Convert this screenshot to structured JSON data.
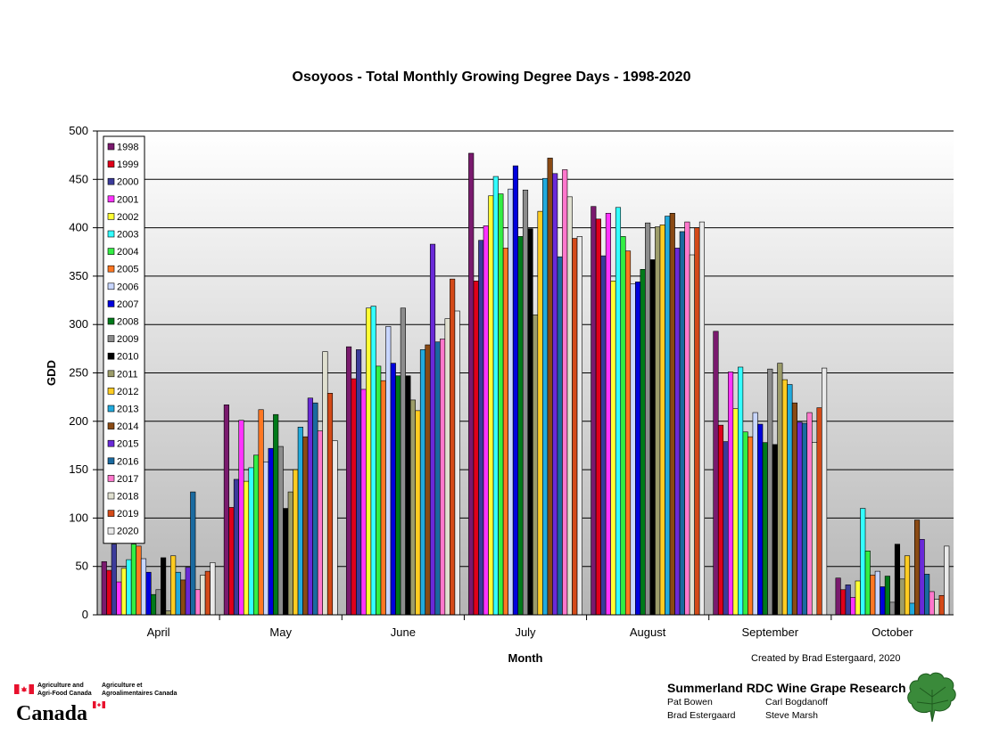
{
  "chart_data": {
    "type": "bar",
    "title": "Osoyoos - Total Monthly Growing Degree Days - 1998-2020",
    "xlabel": "Month",
    "ylabel": "GDD",
    "ylim": [
      0,
      500
    ],
    "yticks": [
      "0",
      "50",
      "100",
      "150",
      "200",
      "250",
      "300",
      "350",
      "400",
      "450",
      "500"
    ],
    "grid": true,
    "legend_position": "top-left",
    "categories": [
      "April",
      "May",
      "June",
      "July",
      "August",
      "September",
      "October"
    ],
    "series": [
      {
        "name": "1998",
        "color": "#7a1a6e",
        "values": [
          55,
          217,
          277,
          477,
          422,
          293,
          38
        ]
      },
      {
        "name": "1999",
        "color": "#e0001a",
        "values": [
          46,
          111,
          244,
          345,
          409,
          196,
          26
        ]
      },
      {
        "name": "2000",
        "color": "#3b3b9a",
        "values": [
          73,
          140,
          274,
          387,
          371,
          179,
          31
        ]
      },
      {
        "name": "2001",
        "color": "#ff33ff",
        "values": [
          34,
          201,
          233,
          402,
          415,
          251,
          18
        ]
      },
      {
        "name": "2002",
        "color": "#ffff33",
        "values": [
          48,
          138,
          317,
          433,
          345,
          213,
          35
        ]
      },
      {
        "name": "2003",
        "color": "#33ffff",
        "values": [
          57,
          152,
          319,
          453,
          421,
          256,
          110
        ]
      },
      {
        "name": "2004",
        "color": "#33ee44",
        "values": [
          73,
          165,
          257,
          435,
          391,
          189,
          66
        ]
      },
      {
        "name": "2005",
        "color": "#ff7722",
        "values": [
          71,
          212,
          242,
          379,
          376,
          184,
          41
        ]
      },
      {
        "name": "2006",
        "color": "#c8d6ff",
        "values": [
          58,
          158,
          298,
          440,
          342,
          209,
          45
        ]
      },
      {
        "name": "2007",
        "color": "#0000dd",
        "values": [
          44,
          172,
          260,
          464,
          344,
          197,
          29
        ]
      },
      {
        "name": "2008",
        "color": "#007a1a",
        "values": [
          21,
          207,
          247,
          391,
          357,
          178,
          40
        ]
      },
      {
        "name": "2009",
        "color": "#8c8c8c",
        "values": [
          26,
          174,
          317,
          439,
          405,
          254,
          13
        ]
      },
      {
        "name": "2010",
        "color": "#000000",
        "values": [
          59,
          110,
          247,
          399,
          367,
          176,
          73
        ]
      },
      {
        "name": "2011",
        "color": "#9c9c6a",
        "values": [
          4,
          127,
          222,
          310,
          401,
          260,
          37
        ]
      },
      {
        "name": "2012",
        "color": "#ffcc22",
        "values": [
          61,
          150,
          211,
          417,
          403,
          243,
          61
        ]
      },
      {
        "name": "2013",
        "color": "#22aadd",
        "values": [
          44,
          194,
          274,
          451,
          412,
          238,
          12
        ]
      },
      {
        "name": "2014",
        "color": "#8a4a14",
        "values": [
          36,
          184,
          279,
          472,
          415,
          219,
          98
        ]
      },
      {
        "name": "2015",
        "color": "#6a2ad8",
        "values": [
          49,
          224,
          383,
          456,
          379,
          199,
          78
        ]
      },
      {
        "name": "2016",
        "color": "#1a6aa0",
        "values": [
          127,
          219,
          282,
          370,
          396,
          198,
          42
        ]
      },
      {
        "name": "2017",
        "color": "#ff77cc",
        "values": [
          26,
          190,
          285,
          460,
          406,
          209,
          24
        ]
      },
      {
        "name": "2018",
        "color": "#e0e0d0",
        "values": [
          41,
          272,
          306,
          432,
          372,
          178,
          16
        ]
      },
      {
        "name": "2019",
        "color": "#d44a18",
        "values": [
          45,
          229,
          347,
          389,
          400,
          214,
          20
        ]
      },
      {
        "name": "2020",
        "color": "#eaeaea",
        "values": [
          54,
          180,
          314,
          391,
          406,
          255,
          71
        ]
      }
    ]
  },
  "credit": "Created by Brad Estergaard, 2020",
  "logo": {
    "english": [
      "Agriculture and",
      "Agri-Food Canada"
    ],
    "french": [
      "Agriculture et",
      "Agroalimentaires Canada"
    ],
    "wordmark": "Canada"
  },
  "research": {
    "heading": "Summerland RDC Wine Grape Research",
    "names": [
      "Pat Bowen",
      "Carl Bogdanoff",
      "Brad Estergaard",
      "Steve Marsh"
    ]
  },
  "colors": {
    "plot_bg_top": "#ffffff",
    "plot_bg_bottom": "#b5b5b5",
    "flag_red": "#e8112d",
    "leaf_green": "#3a8a3a"
  },
  "icons": [
    "canada-flag-icon",
    "grape-leaf-icon"
  ]
}
